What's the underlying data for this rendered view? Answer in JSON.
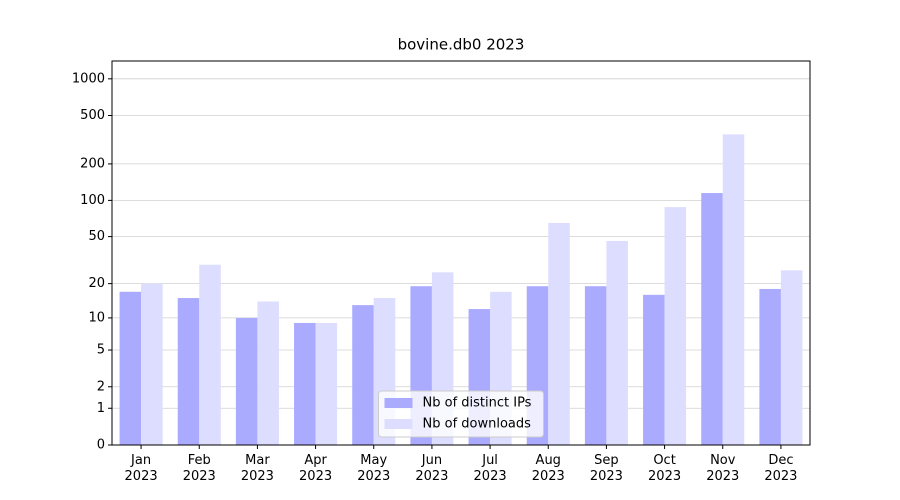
{
  "chart_data": {
    "type": "bar",
    "title": "bovine.db0 2023",
    "categories": [
      "Jan\n2023",
      "Feb\n2023",
      "Mar\n2023",
      "Apr\n2023",
      "May\n2023",
      "Jun\n2023",
      "Jul\n2023",
      "Aug\n2023",
      "Sep\n2023",
      "Oct\n2023",
      "Nov\n2023",
      "Dec\n2023"
    ],
    "series": [
      {
        "name": "Nb of distinct IPs",
        "color": "#aaaaff",
        "values": [
          17,
          15,
          10,
          9,
          13,
          19,
          12,
          19,
          19,
          16,
          115,
          18
        ]
      },
      {
        "name": "Nb of downloads",
        "color": "#ddddff",
        "values": [
          20,
          29,
          14,
          9,
          15,
          25,
          17,
          65,
          46,
          88,
          350,
          26
        ]
      }
    ],
    "yscale": "log1p",
    "ylim": [
      0,
      1400
    ],
    "yticks": [
      0,
      1,
      2,
      5,
      10,
      20,
      50,
      100,
      200,
      500,
      1000
    ],
    "grid": true,
    "legend": "lower center"
  }
}
